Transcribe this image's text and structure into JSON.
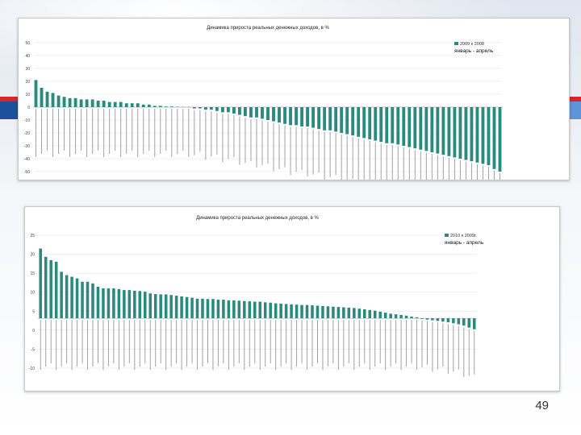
{
  "slide": {
    "page_number": "49"
  },
  "chart_data": [
    {
      "type": "bar",
      "title": "Динамика прироста реальных денежных доходов, в %",
      "legend": "2009 к 2008",
      "annotation": "январь - апрель",
      "ylim": [
        -50,
        50
      ],
      "yticks": [
        "50",
        "40",
        "30",
        "20",
        "10",
        "0",
        "-10",
        "-20",
        "-30",
        "-40",
        "-50"
      ],
      "color": "#2b8a7e",
      "values": [
        21,
        15,
        12,
        11,
        9,
        8,
        7,
        7,
        6,
        6,
        6,
        5,
        5,
        4,
        4,
        4,
        3,
        3,
        3,
        2,
        2,
        1,
        1,
        0.5,
        0.5,
        0.3,
        0.2,
        0.1,
        -1,
        -1,
        -2,
        -2,
        -3,
        -4,
        -4,
        -5,
        -6,
        -7,
        -8,
        -8,
        -9,
        -10,
        -11,
        -12,
        -13,
        -14,
        -14,
        -15,
        -15,
        -16,
        -17,
        -18,
        -18,
        -19,
        -20,
        -21,
        -22,
        -23,
        -24,
        -25,
        -26,
        -27,
        -28,
        -28,
        -29,
        -30,
        -31,
        -32,
        -33,
        -34,
        -35,
        -36,
        -37,
        -38,
        -39,
        -40,
        -41,
        -42,
        -43,
        -44,
        -45,
        -48,
        -50
      ]
    },
    {
      "type": "bar",
      "title": "Динамика прироста реальных денежных доходов, в %",
      "legend": "2010 к 2009г.",
      "annotation": "январь - апрель",
      "ylim": [
        -15,
        25
      ],
      "yticks": [
        "25",
        "20",
        "15",
        "10",
        "5",
        "0",
        "-5",
        "-10"
      ],
      "color": "#2b8a7e",
      "values": [
        21,
        18.5,
        17.5,
        17,
        14,
        13,
        12.5,
        12,
        11,
        11,
        10.5,
        9.5,
        9,
        9,
        9,
        8.8,
        8.5,
        8.5,
        8.3,
        8.2,
        8,
        7.5,
        7.3,
        7.2,
        7.2,
        7,
        6.8,
        6.6,
        6.4,
        6.2,
        5.9,
        5.9,
        5.8,
        5.8,
        5.6,
        5.6,
        5.4,
        5.4,
        5.3,
        5.2,
        5.1,
        5,
        5,
        4.8,
        4.7,
        4.5,
        4.4,
        4.3,
        4.2,
        4.1,
        4,
        4,
        3.9,
        3.8,
        3.7,
        3.6,
        3.5,
        3.4,
        3.3,
        3.2,
        3.1,
        2.9,
        2.7,
        2.5,
        2.3,
        2,
        1.7,
        1.4,
        1.2,
        1,
        0.8,
        0.5,
        0.3,
        -0.2,
        -0.4,
        -0.6,
        -0.8,
        -1,
        -1.2,
        -1.5,
        -1.8,
        -2.2,
        -2.8,
        -3.3
      ]
    }
  ]
}
